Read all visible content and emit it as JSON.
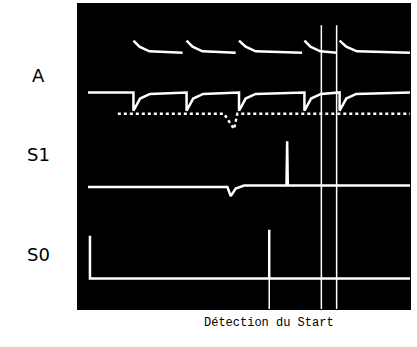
{
  "chart_data": {
    "type": "line",
    "xlim": [
      0,
      100
    ],
    "ylim": [
      0,
      100
    ],
    "tick_labels": false,
    "grid": false,
    "series": [
      {
        "name": "A",
        "color": "#ffffff",
        "line_style": "solid",
        "x": [
          3,
          16.7,
          16.7,
          18.7,
          21.7,
          32.7,
          32.7,
          34.7,
          37.7,
          48.5,
          48.5,
          50.5,
          53.5,
          68.2,
          68.2,
          70.2,
          73.2,
          78.8,
          78.8,
          80.8,
          83.8,
          100
        ],
        "values": [
          71,
          71,
          65,
          69,
          70.5,
          71,
          65,
          69,
          70.5,
          71,
          65,
          69,
          70.5,
          71,
          65,
          69,
          70.5,
          71,
          65,
          69,
          70.5,
          71
        ]
      },
      {
        "color": "#ffffff",
        "line_style": "solid",
        "x": [
          16.7,
          18.5,
          21.5,
          31.5,
          32.0,
          32.7,
          34.5,
          37.5,
          47.5,
          48.0,
          48.5,
          50.5,
          53.5,
          67.5,
          68.0,
          68.2,
          70.0,
          73.0,
          78.0,
          78.4,
          78.8,
          80.8,
          84,
          100
        ],
        "values": [
          88,
          86,
          84.5,
          84,
          null,
          88,
          86,
          84.5,
          84,
          null,
          88,
          86,
          84.5,
          84,
          null,
          88,
          86,
          84.5,
          84,
          null,
          88,
          86,
          84.5,
          84
        ]
      },
      {
        "name": "S1",
        "color": "#ffffff",
        "line_style": "solid",
        "x": [
          3,
          45,
          46,
          47.5,
          50,
          62.8,
          63,
          63.2,
          100
        ],
        "values": [
          40,
          40,
          37,
          39.5,
          40.5,
          40.5,
          55,
          40.5,
          40.5
        ]
      },
      {
        "color": "#ffffff",
        "line_style": "dotted",
        "x": [
          12,
          44,
          47,
          48,
          100
        ],
        "values": [
          64,
          64,
          59,
          64,
          64
        ]
      },
      {
        "name": "S0",
        "color": "#ffffff",
        "line_style": "solid",
        "x": [
          3.6,
          3.6,
          57.6,
          57.6,
          57.6,
          100
        ],
        "values": [
          24,
          10,
          10,
          26,
          10,
          10
        ]
      }
    ],
    "annotations": [
      {
        "text": "Détection du Start",
        "x": 57.6
      }
    ],
    "cursors": [
      73.3,
      77.9
    ]
  }
}
